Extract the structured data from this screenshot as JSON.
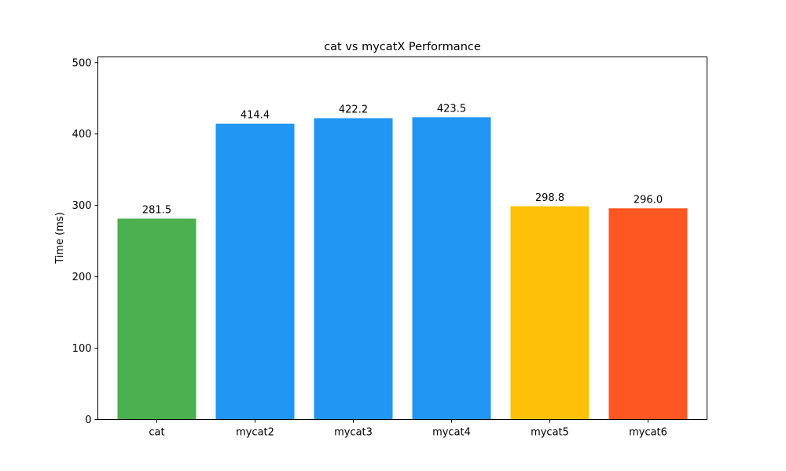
{
  "chart_data": {
    "type": "bar",
    "title": "cat vs mycatX Performance",
    "xlabel": "",
    "ylabel": "Time (ms)",
    "categories": [
      "cat",
      "mycat2",
      "mycat3",
      "mycat4",
      "mycat5",
      "mycat6"
    ],
    "values": [
      281.5,
      414.4,
      422.2,
      423.5,
      298.8,
      296.0
    ],
    "data_labels": [
      "281.5",
      "414.4",
      "422.2",
      "423.5",
      "298.8",
      "296.0"
    ],
    "colors": [
      "#4caf50",
      "#2196f3",
      "#2196f3",
      "#2196f3",
      "#ffc107",
      "#ff5722"
    ],
    "ylim": [
      0,
      508
    ],
    "yticks": [
      0,
      100,
      200,
      300,
      400,
      500
    ],
    "ytick_labels": [
      "0",
      "100",
      "200",
      "300",
      "400",
      "500"
    ],
    "grid": false,
    "legend": "none"
  }
}
